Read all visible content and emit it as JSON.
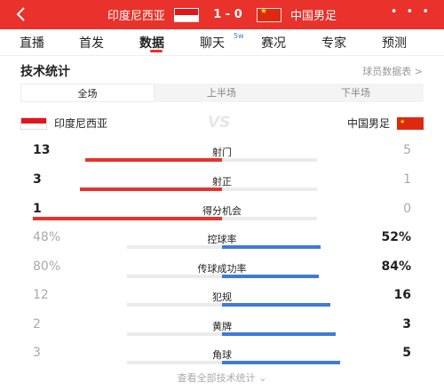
{
  "header": {
    "home_team": "印度尼西亚",
    "away_team": "中国男足",
    "score": "1 - 0",
    "more": "• • •"
  },
  "tabs": [
    {
      "label": "直播"
    },
    {
      "label": "首发"
    },
    {
      "label": "数据"
    },
    {
      "label": "聊天",
      "badge": "5w"
    },
    {
      "label": "赛况"
    },
    {
      "label": "专家"
    },
    {
      "label": "预测"
    }
  ],
  "active_tab": "数据",
  "section": {
    "title": "技术统计",
    "player_link": "球员数据表 >"
  },
  "periods": [
    {
      "label": "全场"
    },
    {
      "label": "上半场"
    },
    {
      "label": "下半场"
    }
  ],
  "active_period": "全场",
  "teams": {
    "home": "印度尼西亚",
    "away": "中国男足",
    "vs": "VS"
  },
  "stats": [
    {
      "label": "射门",
      "home": "13",
      "away": "5",
      "home_value": 13,
      "away_value": 5
    },
    {
      "label": "射正",
      "home": "3",
      "away": "1",
      "home_value": 3,
      "away_value": 1
    },
    {
      "label": "得分机会",
      "home": "1",
      "away": "0",
      "home_value": 1,
      "away_value": 0
    },
    {
      "label": "控球率",
      "home": "48%",
      "away": "52%",
      "home_value": 48,
      "away_value": 52
    },
    {
      "label": "传球成功率",
      "home": "80%",
      "away": "84%",
      "home_value": 80,
      "away_value": 84
    },
    {
      "label": "犯规",
      "home": "12",
      "away": "16",
      "home_value": 12,
      "away_value": 16
    },
    {
      "label": "黄牌",
      "home": "2",
      "away": "3",
      "home_value": 2,
      "away_value": 3
    },
    {
      "label": "角球",
      "home": "3",
      "away": "5",
      "home_value": 3,
      "away_value": 5
    }
  ],
  "footer": {
    "view_all": "查看全部技术统计 ⌄"
  },
  "colors": {
    "brand_red": "#e8322b",
    "away_blue": "#3e7bd6",
    "track_grey": "#ebebeb"
  }
}
